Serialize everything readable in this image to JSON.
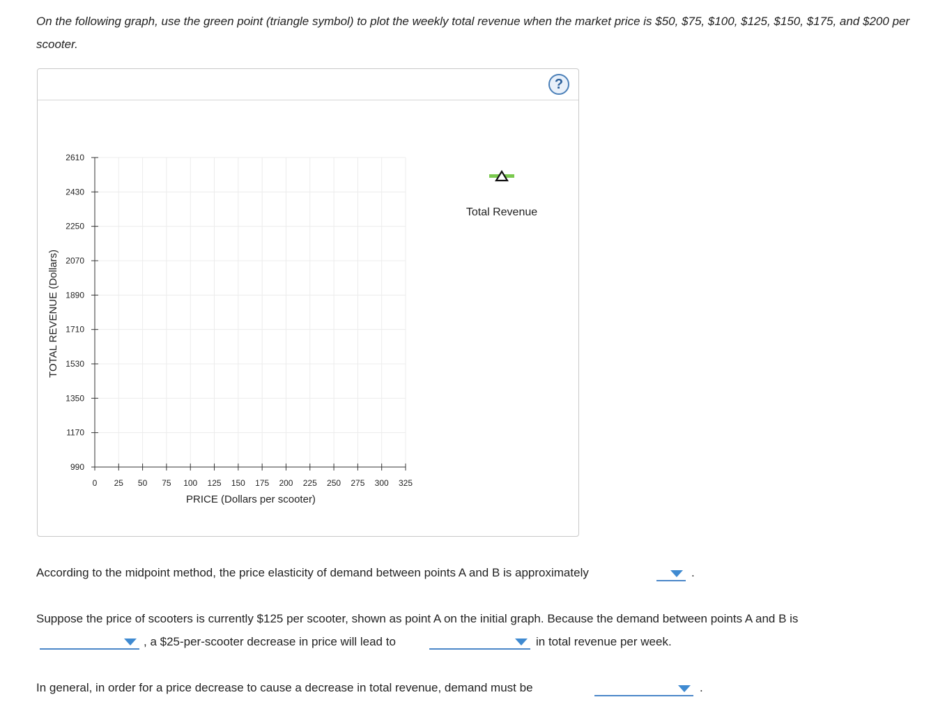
{
  "instructions": "On the following graph, use the green point (triangle symbol) to plot the weekly total revenue when the market price is $50, $75, $100, $125, $150, $175, and $200 per scooter.",
  "help_button": "?",
  "legend": {
    "label": "Total Revenue",
    "icon": "green-triangle-icon",
    "color": "#7ac94e"
  },
  "chart_data": {
    "type": "scatter",
    "xlabel": "PRICE (Dollars per scooter)",
    "ylabel": "TOTAL REVENUE (Dollars)",
    "x_ticks": [
      "0",
      "25",
      "50",
      "75",
      "100",
      "125",
      "150",
      "175",
      "200",
      "225",
      "250",
      "275",
      "300",
      "325"
    ],
    "y_ticks": [
      "2610",
      "2430",
      "2250",
      "2070",
      "1890",
      "1710",
      "1530",
      "1350",
      "1170",
      "990"
    ],
    "xlim": [
      0,
      325
    ],
    "ylim": [
      990,
      2610
    ],
    "grid": true,
    "series": []
  },
  "questions": {
    "q1_text": "According to the midpoint method, the price elasticity of demand between points A and B is approximately",
    "q1_end": ".",
    "q2_text_a": "Suppose the price of scooters is currently $125 per scooter, shown as point A on the initial graph. Because the demand between points A and B is",
    "q2_text_b": ", a $25-per-scooter decrease in price will lead to",
    "q2_text_c": "in total revenue per week.",
    "q3_text": "In general, in order for a price decrease to cause a decrease in total revenue, demand must be",
    "q3_end": "."
  },
  "colors": {
    "dropdown_accent": "#3f8ad1",
    "green_point": "#7ac94e"
  }
}
